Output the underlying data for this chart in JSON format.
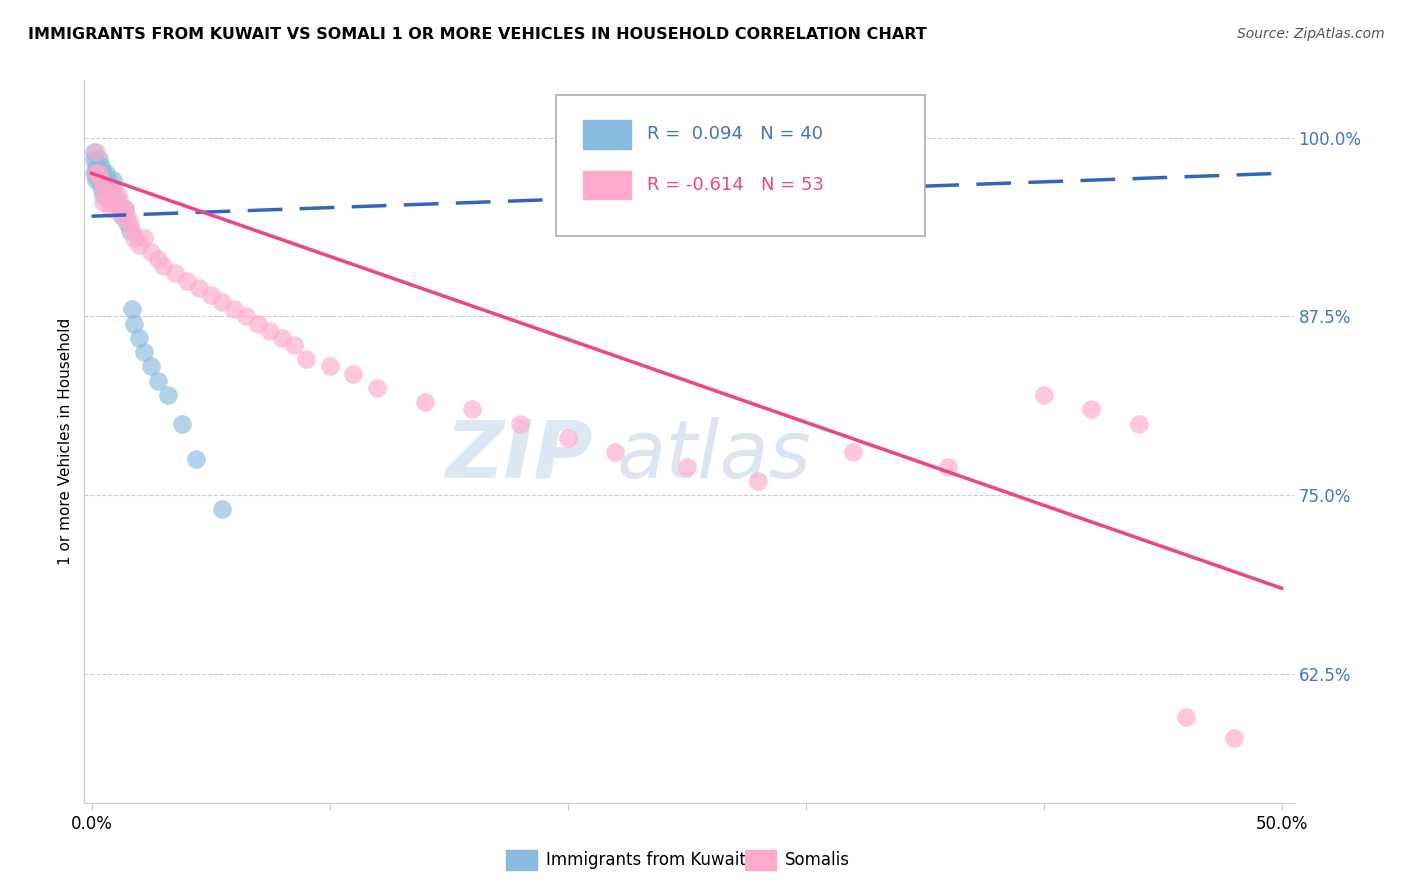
{
  "title": "IMMIGRANTS FROM KUWAIT VS SOMALI 1 OR MORE VEHICLES IN HOUSEHOLD CORRELATION CHART",
  "source": "Source: ZipAtlas.com",
  "ylabel": "1 or more Vehicles in Household",
  "ytick_labels": [
    "100.0%",
    "87.5%",
    "75.0%",
    "62.5%"
  ],
  "ytick_values": [
    1.0,
    0.875,
    0.75,
    0.625
  ],
  "xlim": [
    -0.003,
    0.505
  ],
  "ylim": [
    0.535,
    1.04
  ],
  "legend_label_blue": "Immigrants from Kuwait",
  "legend_label_pink": "Somalis",
  "blue_color": "#88bbdd",
  "pink_color": "#ffaacc",
  "blue_line_color": "#3366bb",
  "pink_line_color": "#ee4488",
  "watermark_zip": "ZIP",
  "watermark_atlas": "atlas",
  "blue_R": 0.094,
  "blue_N": 40,
  "pink_R": -0.614,
  "pink_N": 53,
  "blue_x": [
    0.001,
    0.001,
    0.001,
    0.002,
    0.002,
    0.002,
    0.003,
    0.003,
    0.003,
    0.004,
    0.004,
    0.004,
    0.005,
    0.005,
    0.005,
    0.006,
    0.006,
    0.007,
    0.007,
    0.008,
    0.008,
    0.009,
    0.009,
    0.01,
    0.011,
    0.012,
    0.013,
    0.014,
    0.015,
    0.016,
    0.017,
    0.018,
    0.02,
    0.022,
    0.025,
    0.028,
    0.032,
    0.038,
    0.044,
    0.055
  ],
  "blue_y": [
    0.99,
    0.985,
    0.975,
    0.98,
    0.975,
    0.97,
    0.985,
    0.975,
    0.97,
    0.98,
    0.975,
    0.965,
    0.975,
    0.97,
    0.96,
    0.975,
    0.965,
    0.97,
    0.96,
    0.965,
    0.955,
    0.97,
    0.96,
    0.96,
    0.955,
    0.95,
    0.945,
    0.95,
    0.94,
    0.935,
    0.88,
    0.87,
    0.86,
    0.85,
    0.84,
    0.83,
    0.82,
    0.8,
    0.775,
    0.74
  ],
  "pink_x": [
    0.002,
    0.002,
    0.003,
    0.004,
    0.005,
    0.005,
    0.006,
    0.007,
    0.008,
    0.009,
    0.01,
    0.011,
    0.012,
    0.013,
    0.014,
    0.015,
    0.016,
    0.017,
    0.018,
    0.02,
    0.022,
    0.025,
    0.028,
    0.03,
    0.035,
    0.04,
    0.045,
    0.05,
    0.055,
    0.06,
    0.065,
    0.07,
    0.075,
    0.08,
    0.085,
    0.09,
    0.1,
    0.11,
    0.12,
    0.14,
    0.16,
    0.18,
    0.2,
    0.22,
    0.25,
    0.28,
    0.32,
    0.36,
    0.4,
    0.42,
    0.44,
    0.46,
    0.48
  ],
  "pink_y": [
    0.99,
    0.975,
    0.975,
    0.97,
    0.965,
    0.955,
    0.96,
    0.955,
    0.95,
    0.965,
    0.955,
    0.96,
    0.955,
    0.945,
    0.95,
    0.945,
    0.94,
    0.935,
    0.93,
    0.925,
    0.93,
    0.92,
    0.915,
    0.91,
    0.905,
    0.9,
    0.895,
    0.89,
    0.885,
    0.88,
    0.875,
    0.87,
    0.865,
    0.86,
    0.855,
    0.845,
    0.84,
    0.835,
    0.825,
    0.815,
    0.81,
    0.8,
    0.79,
    0.78,
    0.77,
    0.76,
    0.78,
    0.77,
    0.82,
    0.81,
    0.8,
    0.595,
    0.58
  ]
}
